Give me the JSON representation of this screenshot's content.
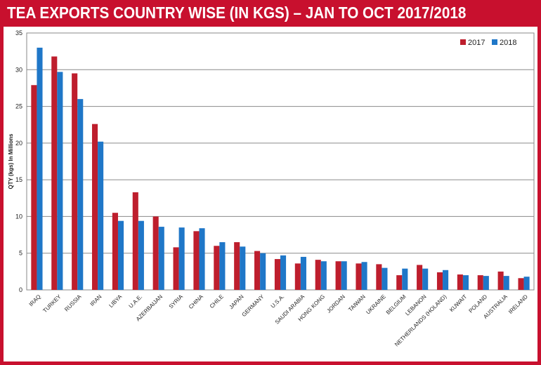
{
  "chart_data": {
    "type": "bar",
    "title": "TEA EXPORTS COUNTRY WISE (IN KGS) – JAN TO OCT 2017/2018",
    "ylabel": "QTY (kgs) In Millions",
    "xlabel": "",
    "ylim": [
      0,
      35
    ],
    "yticks": [
      0,
      5,
      10,
      15,
      20,
      25,
      30,
      35
    ],
    "grid": true,
    "legend_position": "top-right",
    "categories": [
      "IRAQ",
      "TURKEY",
      "RUSSIA",
      "IRAN",
      "LIBYA",
      "U.A.E.",
      "AZERBAIJAN",
      "SYRIA",
      "CHINA",
      "CHILE",
      "JAPAN",
      "GERMANY",
      "U.S.A.",
      "SAUDI ARABIA",
      "HONG KONG",
      "JORDAN",
      "TAIWAN",
      "UKRAINE",
      "BELGIUM",
      "LEBANON",
      "NETHERLANDS (HOLAND)",
      "KUWAIT",
      "POLAND",
      "AUSTRALIA",
      "IRELAND"
    ],
    "series": [
      {
        "name": "2017",
        "color": "#be1e2d",
        "values": [
          27.9,
          31.8,
          29.5,
          22.6,
          10.5,
          13.3,
          10.0,
          5.8,
          8.0,
          6.0,
          6.5,
          5.3,
          4.2,
          3.6,
          4.1,
          3.9,
          3.6,
          3.5,
          2.0,
          3.4,
          2.4,
          2.1,
          2.0,
          2.5,
          1.6
        ]
      },
      {
        "name": "2018",
        "color": "#1f77c8",
        "values": [
          33.0,
          29.7,
          26.0,
          20.2,
          9.4,
          9.4,
          8.6,
          8.5,
          8.4,
          6.5,
          5.9,
          5.0,
          4.7,
          4.5,
          3.9,
          3.9,
          3.8,
          3.0,
          2.9,
          2.9,
          2.7,
          2.0,
          1.9,
          1.9,
          1.8
        ]
      }
    ]
  }
}
